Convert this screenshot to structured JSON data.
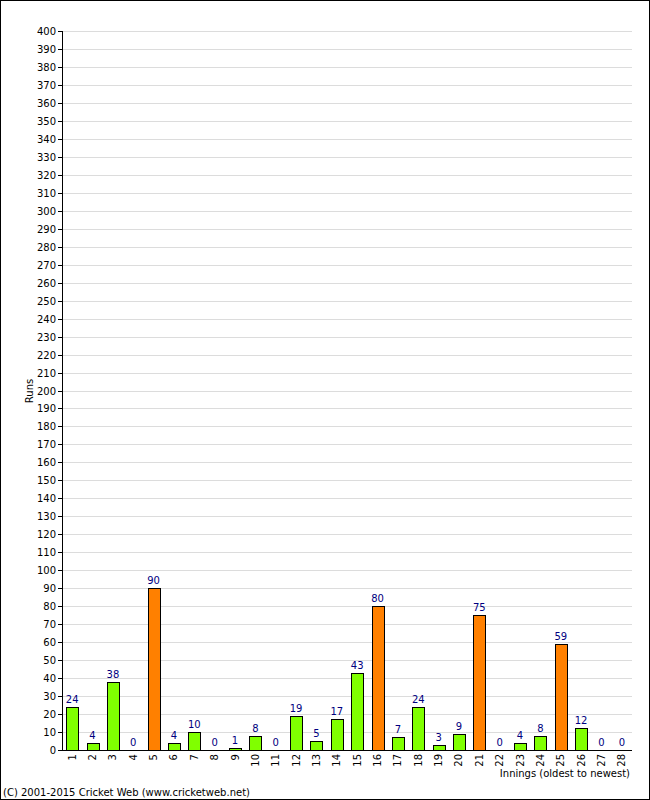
{
  "chart_data": {
    "type": "bar",
    "y_label": "Runs",
    "x_label": "Innings (oldest to newest)",
    "annotations": [
      "(C) 2001-2015 Cricket Web (www.cricketweb.net)"
    ],
    "categories": [
      "1",
      "2",
      "3",
      "4",
      "5",
      "6",
      "7",
      "8",
      "9",
      "10",
      "11",
      "12",
      "13",
      "14",
      "15",
      "16",
      "17",
      "18",
      "19",
      "20",
      "21",
      "22",
      "23",
      "24",
      "25",
      "26",
      "27",
      "28"
    ],
    "values": [
      24,
      4,
      38,
      0,
      90,
      4,
      10,
      0,
      1,
      8,
      0,
      19,
      5,
      17,
      43,
      80,
      7,
      24,
      3,
      9,
      75,
      0,
      4,
      8,
      59,
      12,
      0,
      0
    ],
    "colors": [
      "#80ff00",
      "#80ff00",
      "#80ff00",
      "#80ff00",
      "#ff8000",
      "#80ff00",
      "#80ff00",
      "#80ff00",
      "#80ff00",
      "#80ff00",
      "#80ff00",
      "#80ff00",
      "#80ff00",
      "#80ff00",
      "#80ff00",
      "#ff8000",
      "#80ff00",
      "#80ff00",
      "#80ff00",
      "#80ff00",
      "#ff8000",
      "#80ff00",
      "#80ff00",
      "#80ff00",
      "#ff8000",
      "#80ff00",
      "#80ff00",
      "#80ff00"
    ],
    "ylim": [
      0,
      400
    ],
    "yticks": [
      0,
      10,
      20,
      30,
      40,
      50,
      60,
      70,
      80,
      90,
      100,
      110,
      120,
      130,
      140,
      150,
      160,
      170,
      180,
      190,
      200,
      210,
      220,
      230,
      240,
      250,
      260,
      270,
      280,
      290,
      300,
      310,
      320,
      330,
      340,
      350,
      360,
      370,
      380,
      390,
      400
    ],
    "grid": true,
    "data_labels": true
  }
}
